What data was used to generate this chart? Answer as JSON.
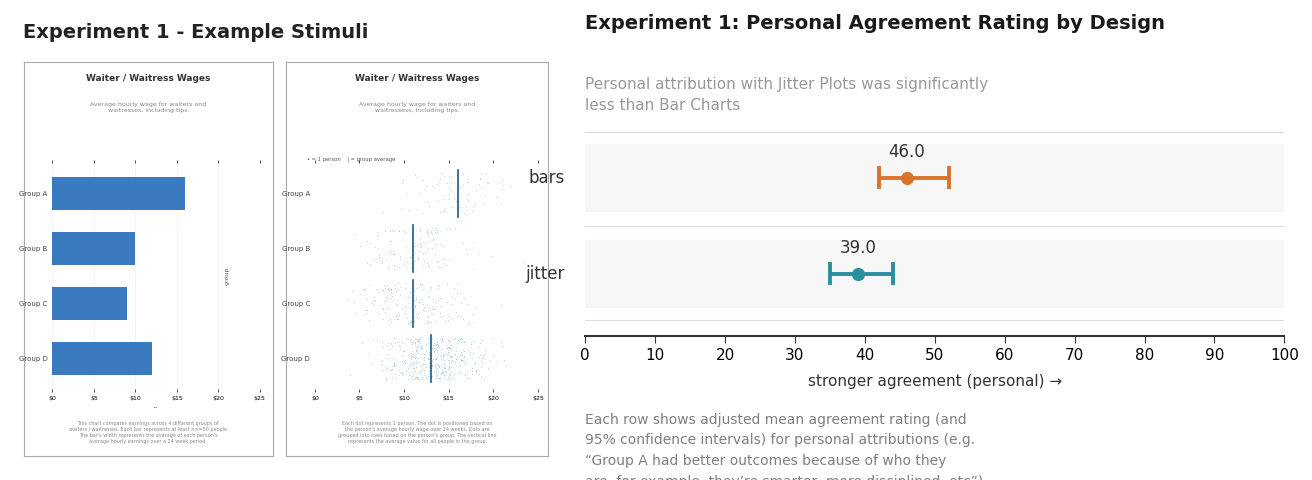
{
  "title_left": "Experiment 1 - Example Stimuli",
  "title_right": "Experiment 1: Personal Agreement Rating by Design",
  "subtitle_right": "Personal attribution with Jitter Plots was significantly\nless than Bar Charts",
  "xlabel": "stronger agreement (personal) →",
  "footnote": "Each row shows adjusted mean agreement rating (and\n95% confidence intervals) for personal attributions (e.g.\n“Group A had better outcomes because of who they\nare, for example, they’re smarter, more disciplined, etc”).",
  "categories": [
    "bars",
    "jitter"
  ],
  "means": [
    46.0,
    39.0
  ],
  "ci_low": [
    42.0,
    35.0
  ],
  "ci_high": [
    52.0,
    44.0
  ],
  "colors": [
    "#d9742b",
    "#2a8fa0"
  ],
  "xlim": [
    0,
    100
  ],
  "xticks": [
    0,
    10,
    20,
    30,
    40,
    50,
    60,
    70,
    80,
    90,
    100
  ],
  "bg_color": "#ffffff",
  "left_panel_bg": "#f0f0f0",
  "label_color": "#333333",
  "subtitle_color": "#999999",
  "footnote_color": "#7f7f7f",
  "title_fontsize": 14,
  "subtitle_fontsize": 11,
  "label_fontsize": 12,
  "tick_fontsize": 11,
  "xlabel_fontsize": 11,
  "footnote_fontsize": 10,
  "bar_chart_title": "Waiter / Waitress Wages",
  "bar_chart_subtitle": "Average hourly wage for waiters and\nwaitresses, including tips.",
  "bar_groups": [
    "Group A",
    "Group B",
    "Group C",
    "Group D"
  ],
  "bar_values": [
    16,
    10,
    9,
    12
  ],
  "bar_color": "#3a7abf",
  "jitter_chart_title": "Waiter / Waitress Wages",
  "jitter_chart_subtitle": "Average hourly wage for waiters and\nwaitressess, including tips.",
  "bar_footnote": "This chart compares earnings across 4 different groups of\nwaiters / waitresses. Each bar represents at least n>=50 people.\nThe bar's width represents the average of each person's\naverage hourly earnings over a 24 week period.",
  "jitter_footnote": "Each dot represents 1 person. The dot is positioned based on\nthe person's average hourly wage over 24 weeks. Dots are\ngrouped into rows based on the person's group. The vertical line\nrepresents the average value for all people in the group.",
  "jitter_group_means": [
    16,
    11,
    11,
    13
  ],
  "jitter_n_samples": [
    80,
    120,
    180,
    400
  ]
}
